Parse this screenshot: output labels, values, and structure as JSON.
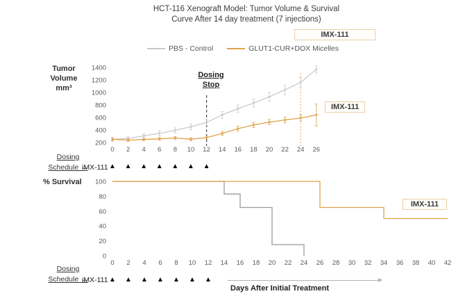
{
  "title": {
    "line1": "HCT-116 Xenograft Model: Tumor Volume & Survival",
    "line2": "Curve After 14 day treatment (7 injections)"
  },
  "legend": {
    "treatment_box_label": "IMX-111",
    "items": [
      {
        "label": "PBS - Control",
        "color": "#c9c9c9"
      },
      {
        "label": "GLUT1-CUR+DOX Micelles",
        "color": "#dfa14a"
      }
    ]
  },
  "labels": {
    "tumor_y": [
      "Tumor",
      "Volume",
      "mm³"
    ],
    "dosing_stop": [
      "Dosing",
      "Stop"
    ],
    "survival_y": "% Survival",
    "days_axis": "Days After Initial Treatment",
    "imx_annotation_tumor": "IMX-111",
    "imx_annotation_survival": "IMX-111"
  },
  "dosing": {
    "schedule_label": [
      "Dosing",
      "Schedule →"
    ],
    "drug_label": "iMX-111",
    "marker_glyph": "▲",
    "days": [
      0,
      2,
      4,
      6,
      8,
      10,
      12
    ]
  },
  "colors": {
    "orange": "#dfa14a",
    "gray_light": "#c9c9c9",
    "gray_dark": "#9b9b9b",
    "box_border": "#e8cfa3",
    "dashed_line": "#444444",
    "tick_text": "#595959"
  },
  "chart_data": [
    {
      "type": "line",
      "title": "Tumor Volume",
      "ylabel": "Tumor Volume mm³",
      "xlabel": "",
      "x": [
        0,
        2,
        4,
        6,
        8,
        10,
        12,
        14,
        16,
        18,
        20,
        22,
        24,
        26
      ],
      "ylim": [
        200,
        1400
      ],
      "yticks": [
        200,
        400,
        600,
        800,
        1000,
        1200,
        1400
      ],
      "grid": false,
      "legend_position": "top",
      "series": [
        {
          "name": "PBS - Control",
          "color": "#c9c9c9",
          "values": [
            250,
            265,
            305,
            345,
            395,
            450,
            520,
            640,
            740,
            830,
            930,
            1040,
            1160,
            1370
          ],
          "errors": [
            30,
            30,
            35,
            40,
            40,
            45,
            50,
            55,
            60,
            65,
            70,
            75,
            80,
            60
          ]
        },
        {
          "name": "GLUT1-CUR+DOX Micelles",
          "color": "#dfa14a",
          "values": [
            250,
            238,
            248,
            258,
            272,
            252,
            278,
            345,
            420,
            480,
            525,
            560,
            590,
            640
          ],
          "errors": [
            20,
            20,
            20,
            22,
            25,
            25,
            28,
            32,
            38,
            40,
            42,
            45,
            48,
            175
          ]
        }
      ],
      "annotations": {
        "dosing_stop_day": 12,
        "imx_marker_day": 24
      }
    },
    {
      "type": "line",
      "subtype": "step",
      "title": "% Survival",
      "ylabel": "% Survival",
      "xlabel": "Days After Initial Treatment",
      "xticks": [
        0,
        2,
        4,
        6,
        8,
        10,
        12,
        14,
        16,
        18,
        20,
        22,
        24,
        26,
        28,
        30,
        32,
        34,
        36,
        38,
        40,
        42
      ],
      "ylim": [
        0,
        100
      ],
      "yticks": [
        0,
        20,
        40,
        60,
        80,
        100
      ],
      "grid": false,
      "series": [
        {
          "name": "PBS - Control",
          "color": "#9b9b9b",
          "steps": [
            [
              0,
              100
            ],
            [
              14,
              83
            ],
            [
              16,
              65
            ],
            [
              20,
              15
            ],
            [
              24,
              0
            ]
          ],
          "end_x": 24
        },
        {
          "name": "GLUT1-CUR+DOX Micelles",
          "color": "#dfa14a",
          "steps": [
            [
              0,
              100
            ],
            [
              26,
              65
            ],
            [
              34,
              50
            ]
          ],
          "end_x": 42
        }
      ]
    }
  ]
}
